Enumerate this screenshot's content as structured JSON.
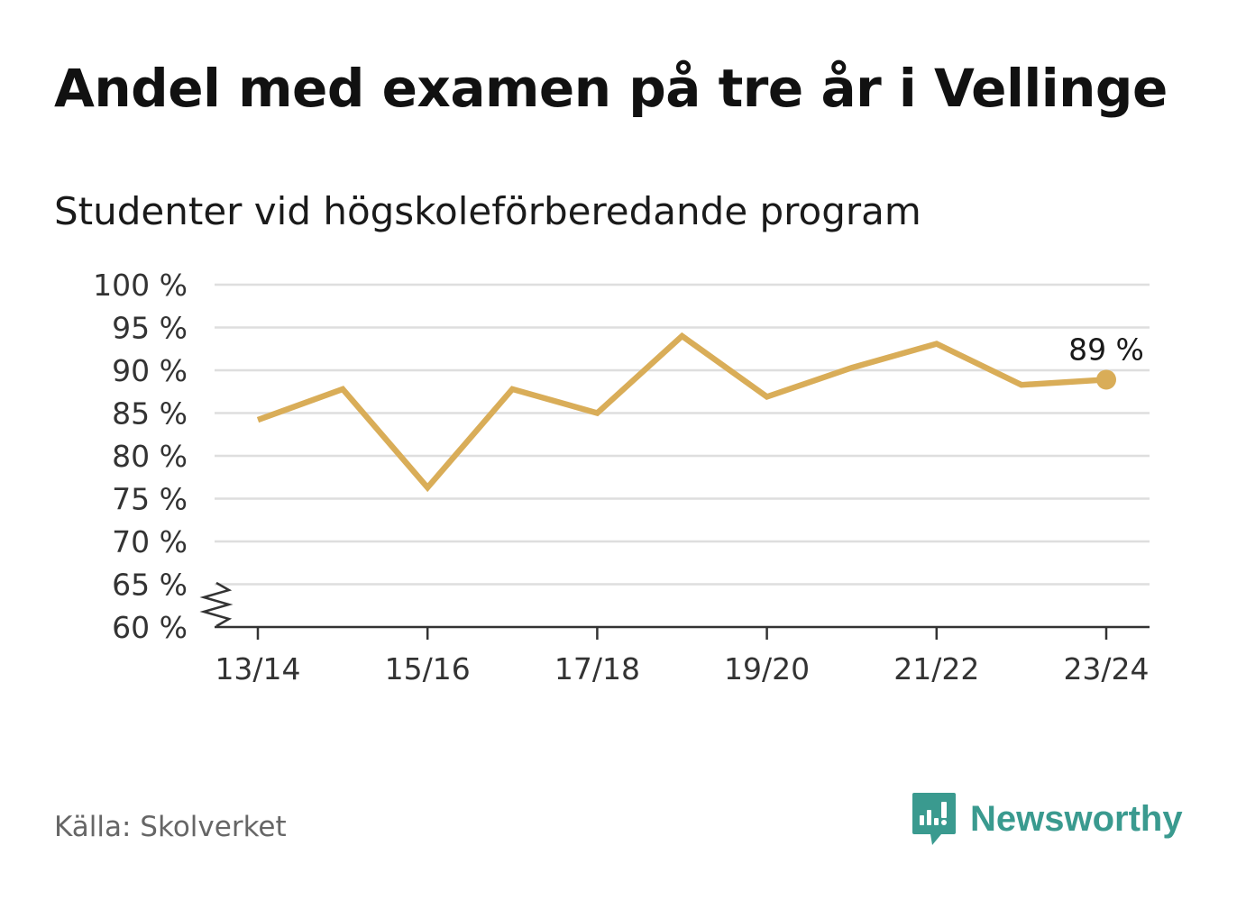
{
  "title": "Andel med examen på tre år i Vellinge",
  "subtitle": "Studenter vid högskoleförberedande program",
  "source": "Källa: Skolverket",
  "brand": {
    "name": "Newsworthy",
    "icon": "newsworthy-logo-icon",
    "color": "#3a9a8f"
  },
  "colors": {
    "line": "#d9ad58",
    "grid": "#dedede",
    "axis": "#333333"
  },
  "chart_data": {
    "type": "line",
    "title": "Andel med examen på tre år i Vellinge",
    "subtitle": "Studenter vid högskoleförberedande program",
    "xlabel": "",
    "ylabel": "",
    "x": [
      "13/14",
      "14/15",
      "15/16",
      "16/17",
      "17/18",
      "18/19",
      "19/20",
      "20/21",
      "21/22",
      "22/23",
      "23/24"
    ],
    "x_tick_labels": [
      "13/14",
      "15/16",
      "17/18",
      "19/20",
      "21/22",
      "23/24"
    ],
    "series": [
      {
        "values": [
          84.2,
          87.8,
          76.3,
          87.8,
          85.0,
          94.0,
          86.9,
          90.3,
          93.1,
          88.3,
          88.9
        ]
      }
    ],
    "ylim": [
      60,
      100
    ],
    "y_ticks": [
      60,
      65,
      70,
      75,
      80,
      85,
      90,
      95,
      100
    ],
    "y_tick_labels": [
      "60 %",
      "65 %",
      "70 %",
      "75 %",
      "80 %",
      "85 %",
      "90 %",
      "95 %",
      "100 %"
    ],
    "y_axis_break": true,
    "grid": true,
    "end_label": "89 %"
  }
}
